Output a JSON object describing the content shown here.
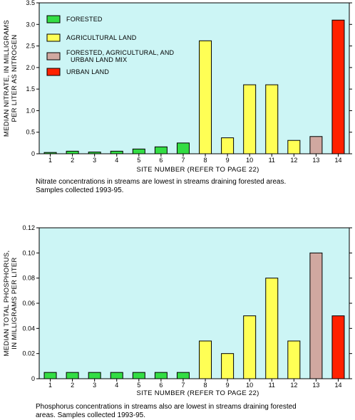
{
  "colors": {
    "plot_bg": "#ccf5f5",
    "forested": "#33dd44",
    "agricultural": "#ffff55",
    "mix": "#d0a8a0",
    "urban": "#ff2200"
  },
  "chart_data": [
    {
      "type": "bar",
      "title": "",
      "xlabel": "SITE NUMBER (REFER TO PAGE 22)",
      "ylabel_lines": [
        "MEDIAN NITRATE, IN MILLIGRAMS",
        "PER LITER AS NITROGEN"
      ],
      "ylim": [
        0,
        3.5
      ],
      "yticks": [
        "0",
        "0.5",
        "1.0",
        "1.5",
        "2.0",
        "2.5",
        "3.0",
        "3.5"
      ],
      "ytick_values": [
        0,
        0.5,
        1.0,
        1.5,
        2.0,
        2.5,
        3.0,
        3.5
      ],
      "categories": [
        "1",
        "2",
        "3",
        "4",
        "5",
        "6",
        "7",
        "8",
        "9",
        "10",
        "11",
        "12",
        "13",
        "14"
      ],
      "values": [
        0.03,
        0.06,
        0.04,
        0.06,
        0.11,
        0.16,
        0.25,
        2.62,
        0.37,
        1.6,
        1.6,
        0.31,
        0.4,
        3.1
      ],
      "groups": [
        "forested",
        "forested",
        "forested",
        "forested",
        "forested",
        "forested",
        "forested",
        "agricultural",
        "agricultural",
        "agricultural",
        "agricultural",
        "agricultural",
        "mix",
        "urban"
      ],
      "legend_position": "top-left",
      "legend": [
        {
          "key": "forested",
          "lines": [
            "FORESTED"
          ]
        },
        {
          "key": "agricultural",
          "lines": [
            "AGRICULTURAL LAND"
          ]
        },
        {
          "key": "mix",
          "lines": [
            "FORESTED, AGRICULTURAL, AND",
            "URBAN LAND MIX"
          ]
        },
        {
          "key": "urban",
          "lines": [
            "URBAN LAND"
          ]
        }
      ],
      "caption": "Nitrate concentrations in streams are lowest in streams draining forested areas.\nSamples collected 1993-95."
    },
    {
      "type": "bar",
      "title": "",
      "xlabel": "SITE NUMBER (REFER TO PAGE 22)",
      "ylabel_lines": [
        "MEDIAN TOTAL PHOSPHORUS,",
        "IN MILLIGRAMS PER LITER"
      ],
      "ylim": [
        0,
        0.12
      ],
      "yticks": [
        "0",
        "0.02",
        "0.04",
        "0.06",
        "0.08",
        "0.10",
        "0.12"
      ],
      "ytick_values": [
        0,
        0.02,
        0.04,
        0.06,
        0.08,
        0.1,
        0.12
      ],
      "categories": [
        "1",
        "2",
        "3",
        "4",
        "5",
        "6",
        "7",
        "8",
        "9",
        "10",
        "11",
        "12",
        "13",
        "14"
      ],
      "values": [
        0.005,
        0.005,
        0.005,
        0.005,
        0.005,
        0.005,
        0.005,
        0.03,
        0.02,
        0.05,
        0.08,
        0.03,
        0.1,
        0.05
      ],
      "groups": [
        "forested",
        "forested",
        "forested",
        "forested",
        "forested",
        "forested",
        "forested",
        "agricultural",
        "agricultural",
        "agricultural",
        "agricultural",
        "agricultural",
        "mix",
        "urban"
      ],
      "caption": "Phosphorus concentrations in streams also are lowest in streams draining forested\nareas. Samples collected 1993-95."
    }
  ]
}
